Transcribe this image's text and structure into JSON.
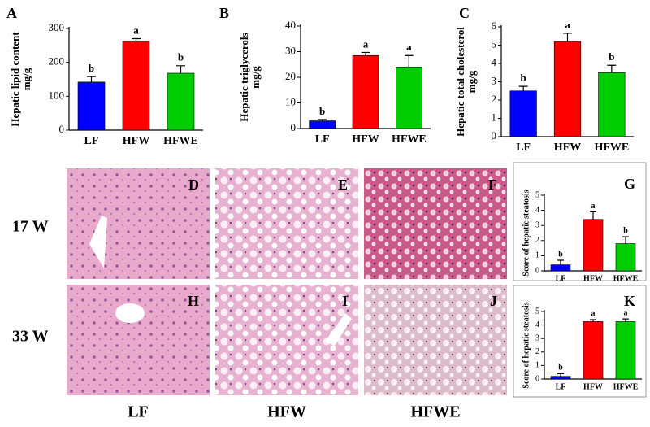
{
  "chart_data": [
    {
      "type": "bar",
      "label": "A",
      "ylabel": [
        "Hepatic lipid content",
        "mg/g"
      ],
      "categories": [
        "LF",
        "HFW",
        "HFWE"
      ],
      "values": [
        142,
        262,
        168
      ],
      "errors": [
        16,
        8,
        22
      ],
      "significance": [
        "b",
        "a",
        "b"
      ],
      "colors": [
        "#0000ff",
        "#ff0000",
        "#00cc00"
      ],
      "ylim": [
        0,
        300
      ],
      "yticks": [
        0,
        100,
        200,
        300
      ]
    },
    {
      "type": "bar",
      "label": "B",
      "ylabel": [
        "Hepatic triglycerols",
        "mg/g"
      ],
      "categories": [
        "LF",
        "HFW",
        "HFWE"
      ],
      "values": [
        3,
        28.5,
        24
      ],
      "errors": [
        0.5,
        1.2,
        4.5
      ],
      "significance": [
        "b",
        "a",
        "a"
      ],
      "colors": [
        "#0000ff",
        "#ff0000",
        "#00cc00"
      ],
      "ylim": [
        0,
        40
      ],
      "yticks": [
        0,
        10,
        20,
        30,
        40
      ]
    },
    {
      "type": "bar",
      "label": "C",
      "ylabel": [
        "Hepatic total cholesterol",
        "mg/g"
      ],
      "categories": [
        "LF",
        "HFW",
        "HFWE"
      ],
      "values": [
        2.5,
        5.2,
        3.5
      ],
      "errors": [
        0.25,
        0.45,
        0.4
      ],
      "significance": [
        "b",
        "a",
        "b"
      ],
      "colors": [
        "#0000ff",
        "#ff0000",
        "#00cc00"
      ],
      "ylim": [
        0,
        6
      ],
      "yticks": [
        0,
        1,
        2,
        3,
        4,
        5,
        6
      ]
    },
    {
      "type": "bar",
      "label": "G",
      "ylabel": [
        "Score of hepatic steatosis"
      ],
      "categories": [
        "LF",
        "HFW",
        "HFWE"
      ],
      "values": [
        0.4,
        3.4,
        1.8
      ],
      "errors": [
        0.3,
        0.5,
        0.45
      ],
      "significance": [
        "b",
        "a",
        "b"
      ],
      "colors": [
        "#0000ff",
        "#ff0000",
        "#00cc00"
      ],
      "ylim": [
        0,
        5
      ],
      "yticks": [
        0,
        1,
        2,
        3,
        4,
        5
      ]
    },
    {
      "type": "bar",
      "label": "K",
      "ylabel": [
        "Score of hepatic steatosis"
      ],
      "categories": [
        "LF",
        "HFW",
        "HFWE"
      ],
      "values": [
        0.2,
        4.25,
        4.25
      ],
      "errors": [
        0.2,
        0.15,
        0.2
      ],
      "significance": [
        "b",
        "a",
        "a"
      ],
      "colors": [
        "#0000ff",
        "#ff0000",
        "#00cc00"
      ],
      "ylim": [
        0,
        5
      ],
      "yticks": [
        0,
        1,
        2,
        3,
        4,
        5
      ]
    }
  ],
  "histology": {
    "panels": [
      "D",
      "E",
      "F",
      "H",
      "I",
      "J"
    ],
    "rows": [
      "17 W",
      "33 W"
    ],
    "columns": [
      "LF",
      "HFW",
      "HFWE"
    ]
  }
}
